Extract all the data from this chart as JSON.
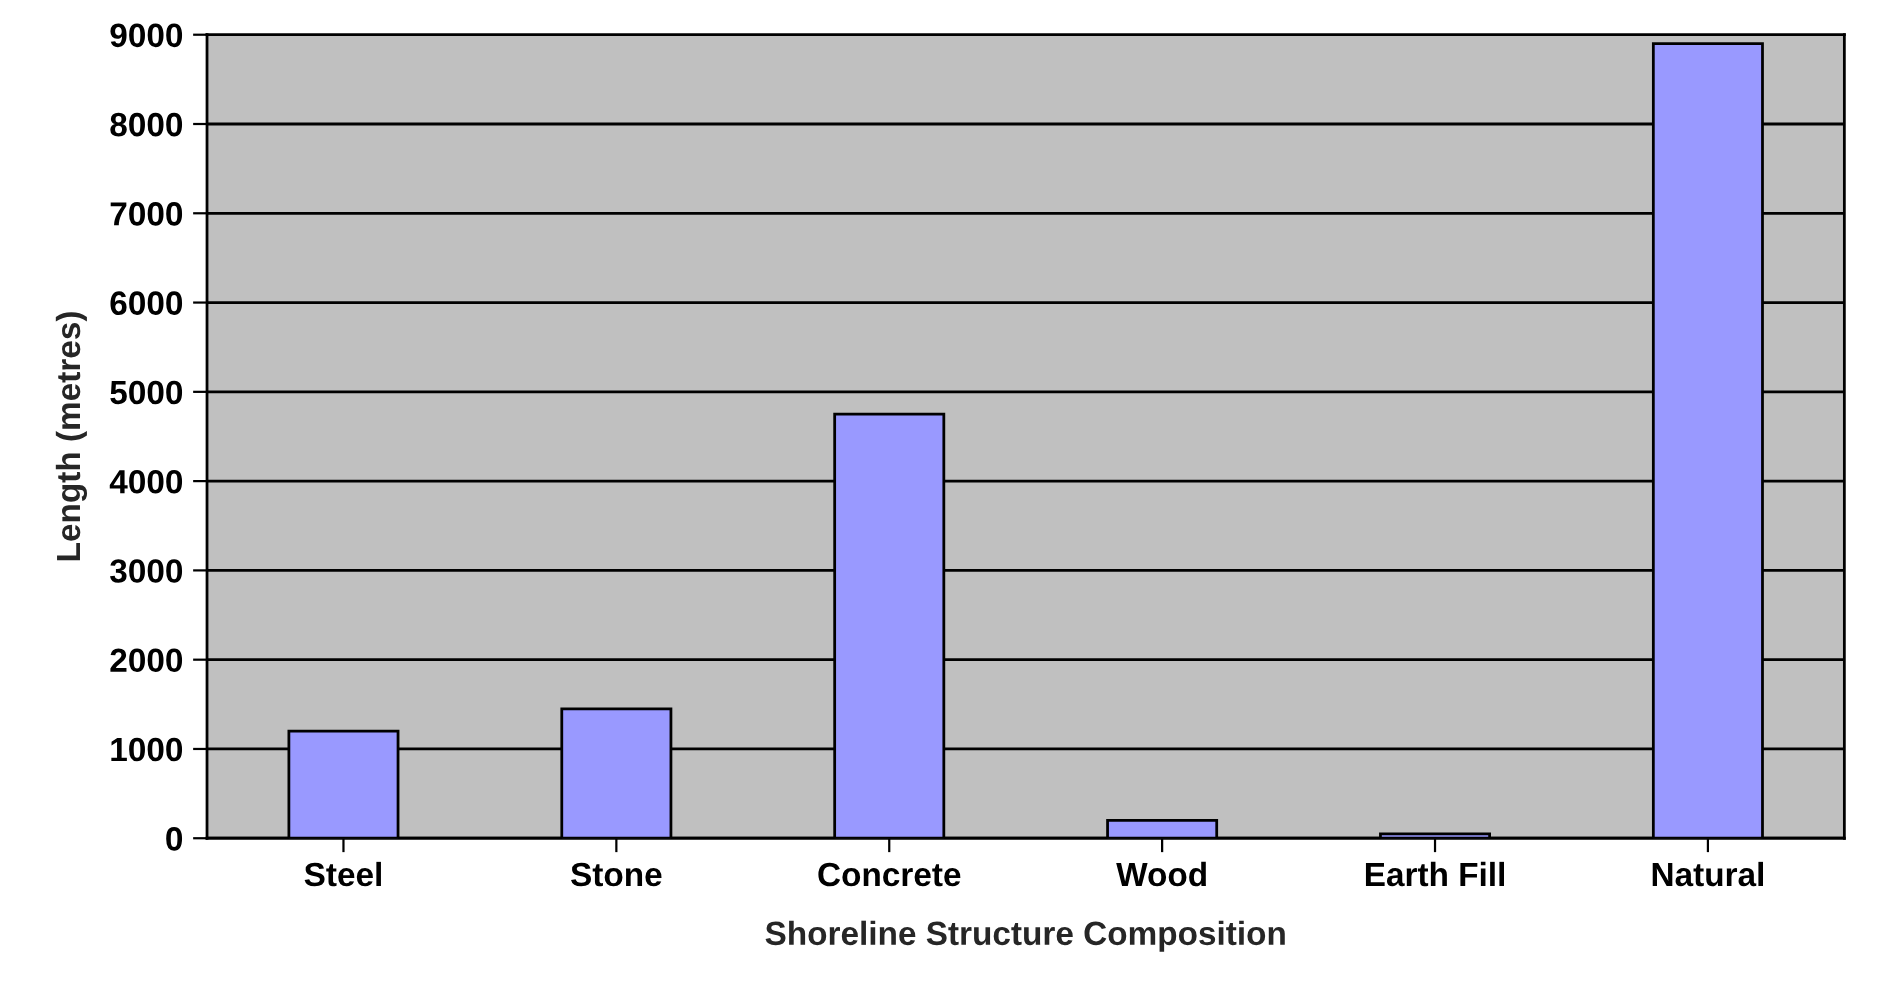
{
  "chart_data": {
    "type": "bar",
    "xlabel": "Shoreline Structure Composition",
    "ylabel": "Length (metres)",
    "categories": [
      "Steel",
      "Stone",
      "Concrete",
      "Wood",
      "Earth Fill",
      "Natural"
    ],
    "values": [
      1200,
      1450,
      4750,
      200,
      50,
      8900
    ],
    "color": "#9999ff",
    "ylim": [
      0,
      9000
    ],
    "yticks": [
      0,
      1000,
      2000,
      3000,
      4000,
      5000,
      6000,
      7000,
      8000,
      9000
    ],
    "grid": "y"
  }
}
